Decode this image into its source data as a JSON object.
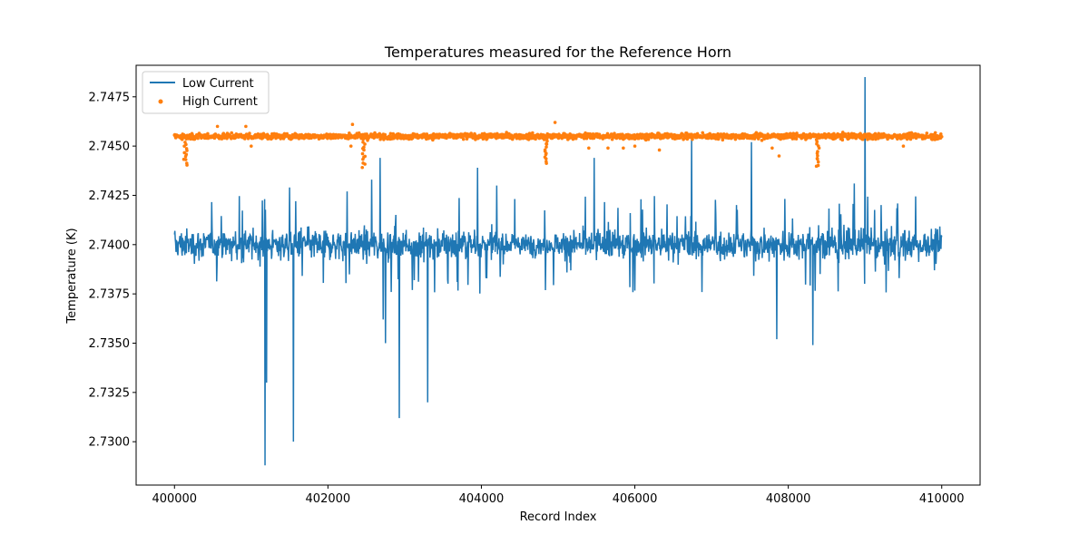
{
  "chart_data": {
    "type": "line+scatter",
    "title": "Temperatures measured for the Reference Horn",
    "xlabel": "Record Index",
    "ylabel": "Temperature (K)",
    "xlim": [
      399500,
      410500
    ],
    "ylim": [
      2.7278,
      2.7491
    ],
    "x_ticks": [
      400000,
      402000,
      404000,
      406000,
      408000,
      410000
    ],
    "x_tick_labels": [
      "400000",
      "402000",
      "404000",
      "406000",
      "408000",
      "410000"
    ],
    "y_ticks": [
      2.73,
      2.7325,
      2.735,
      2.7375,
      2.74,
      2.7425,
      2.745,
      2.7475
    ],
    "y_tick_labels": [
      "2.7300",
      "2.7325",
      "2.7350",
      "2.7375",
      "2.7400",
      "2.7425",
      "2.7450",
      "2.7475"
    ],
    "legend_position": "top-left",
    "series": [
      {
        "name": "Low Current",
        "kind": "line",
        "color": "#1f77b4",
        "x_range": [
          400000,
          410000
        ],
        "baseline": 2.74,
        "typical_range": [
          2.7385,
          2.7415
        ],
        "spikes": [
          {
            "x": 401180,
            "y": 2.7288
          },
          {
            "x": 401200,
            "y": 2.733
          },
          {
            "x": 401550,
            "y": 2.73
          },
          {
            "x": 401500,
            "y": 2.7429
          },
          {
            "x": 402250,
            "y": 2.7427
          },
          {
            "x": 402570,
            "y": 2.7433
          },
          {
            "x": 402680,
            "y": 2.7444
          },
          {
            "x": 402720,
            "y": 2.7362
          },
          {
            "x": 402750,
            "y": 2.735
          },
          {
            "x": 402930,
            "y": 2.7312
          },
          {
            "x": 403300,
            "y": 2.732
          },
          {
            "x": 403950,
            "y": 2.7439
          },
          {
            "x": 404200,
            "y": 2.743
          },
          {
            "x": 405470,
            "y": 2.7444
          },
          {
            "x": 406740,
            "y": 2.7455
          },
          {
            "x": 407520,
            "y": 2.7452
          },
          {
            "x": 407850,
            "y": 2.7352
          },
          {
            "x": 408320,
            "y": 2.7349
          },
          {
            "x": 408860,
            "y": 2.7431
          },
          {
            "x": 409000,
            "y": 2.7485
          }
        ]
      },
      {
        "name": "High Current",
        "kind": "scatter",
        "color": "#ff7f0e",
        "x_range": [
          400000,
          410000
        ],
        "baseline": 2.7455,
        "typical_range": [
          2.7453,
          2.7458
        ],
        "dips": [
          {
            "x": 400140,
            "y": 2.7441
          },
          {
            "x": 402470,
            "y": 2.744
          },
          {
            "x": 404840,
            "y": 2.7442
          },
          {
            "x": 408380,
            "y": 2.744
          }
        ],
        "outliers": [
          {
            "x": 401000,
            "y": 2.745
          },
          {
            "x": 402300,
            "y": 2.745
          },
          {
            "x": 402320,
            "y": 2.7461
          },
          {
            "x": 404960,
            "y": 2.7462
          },
          {
            "x": 405400,
            "y": 2.7449
          },
          {
            "x": 405650,
            "y": 2.7449
          },
          {
            "x": 405850,
            "y": 2.7449
          },
          {
            "x": 406000,
            "y": 2.745
          },
          {
            "x": 406320,
            "y": 2.7448
          },
          {
            "x": 407790,
            "y": 2.7449
          },
          {
            "x": 407880,
            "y": 2.7445
          },
          {
            "x": 409500,
            "y": 2.745
          },
          {
            "x": 400560,
            "y": 2.746
          },
          {
            "x": 400930,
            "y": 2.746
          }
        ]
      }
    ]
  }
}
